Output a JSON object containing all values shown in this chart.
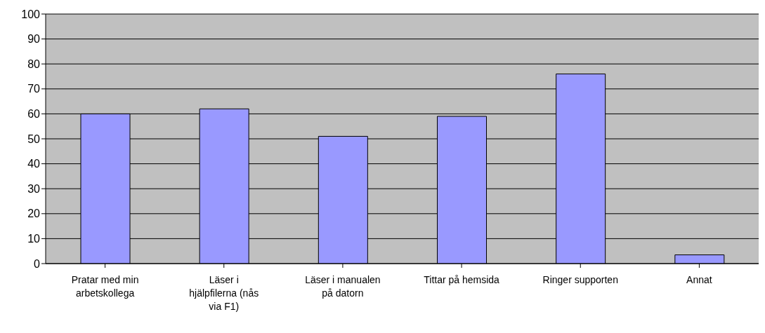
{
  "chart_data": {
    "type": "bar",
    "categories": [
      "Pratar med min arbetskollega",
      "Läser i hjälpfilerna (nås via F1)",
      "Läser i manualen på datorn",
      "Tittar på hemsida",
      "Ringer supporten",
      "Annat"
    ],
    "values": [
      60,
      62,
      51,
      59,
      76,
      3.5
    ],
    "color": "#9999ff",
    "ylim": [
      0,
      100
    ],
    "yticks": [
      0,
      10,
      20,
      30,
      40,
      50,
      60,
      70,
      80,
      90,
      100
    ],
    "grid": "y"
  }
}
